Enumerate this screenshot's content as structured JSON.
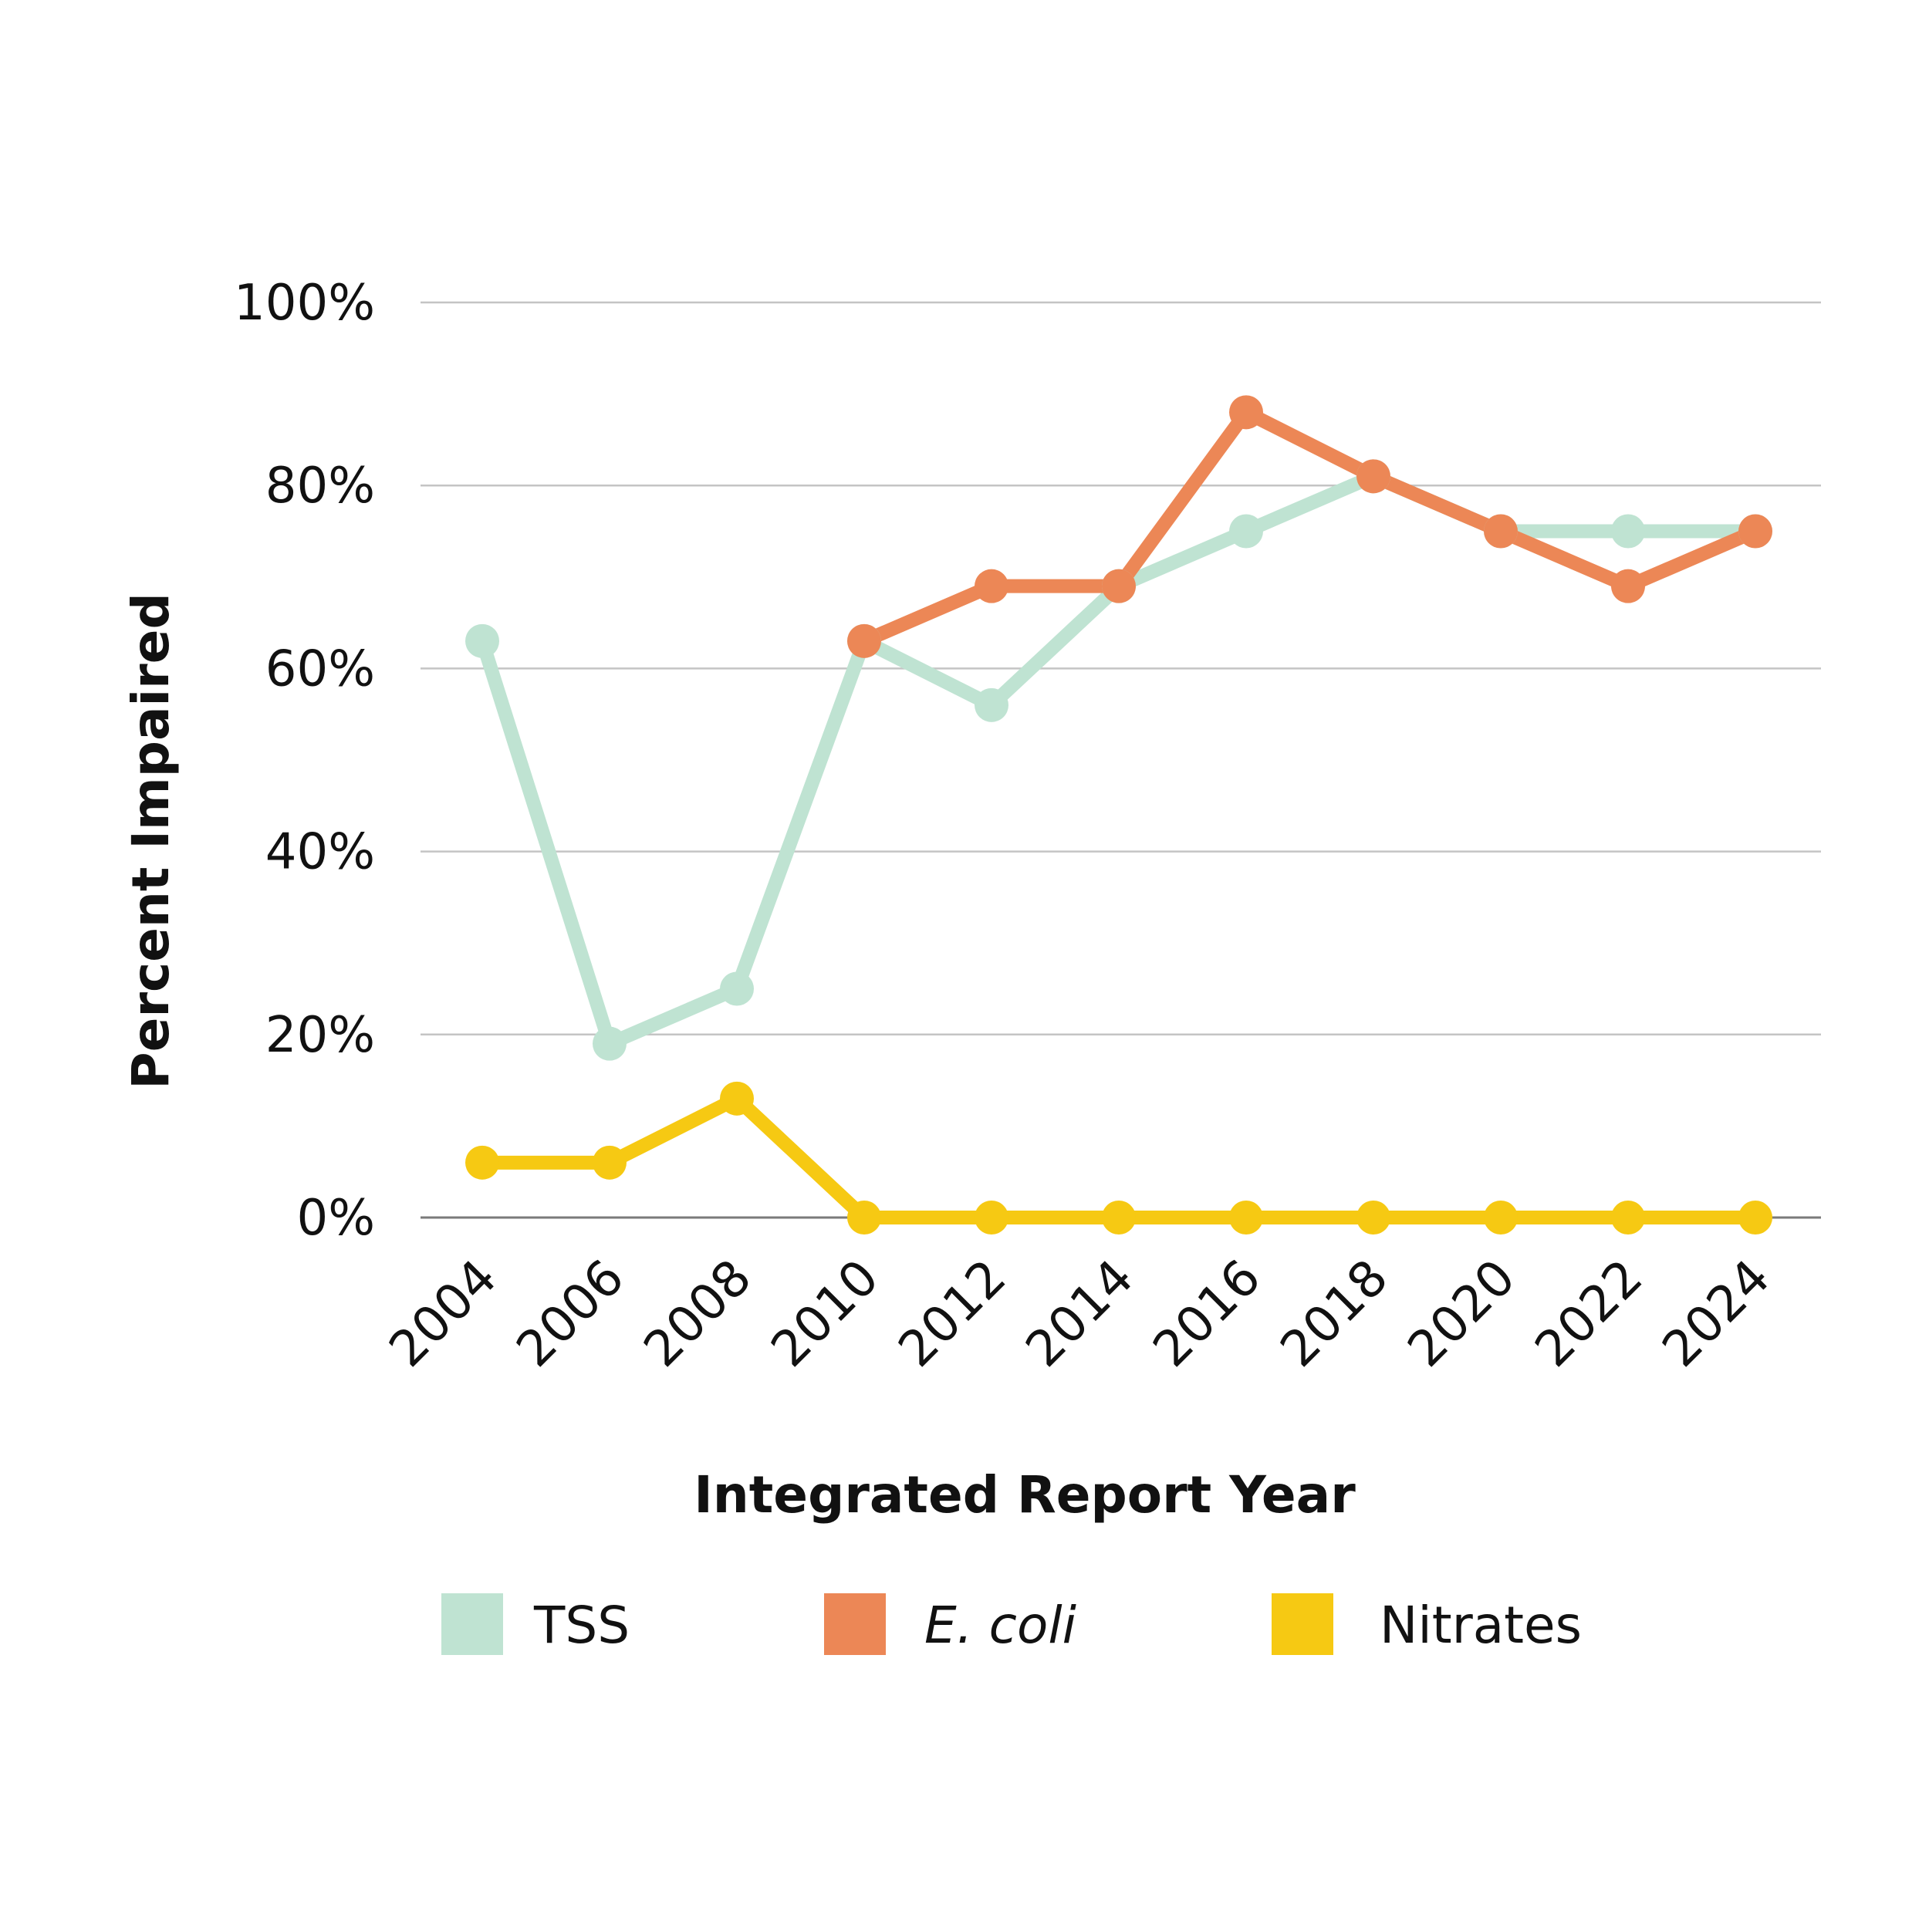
{
  "chart_data": {
    "type": "line",
    "title": "",
    "xlabel": "Integrated Report Year",
    "ylabel": "Percent Impaired",
    "categories": [
      "2004",
      "2006",
      "2008",
      "2010",
      "2012",
      "2014",
      "2016",
      "2018",
      "2020",
      "2022",
      "2024"
    ],
    "ylim": [
      0,
      100
    ],
    "yticks": [
      0,
      20,
      40,
      60,
      80,
      100
    ],
    "ytick_labels": [
      "0%",
      "20%",
      "40%",
      "60%",
      "80%",
      "100%"
    ],
    "grid": true,
    "legend_position": "bottom",
    "series": [
      {
        "name": "TSS",
        "color": "#bfe3d2",
        "italic": false,
        "values": [
          63,
          19,
          25,
          63,
          56,
          69,
          75,
          81,
          75,
          75,
          75
        ]
      },
      {
        "name": "E. coli",
        "color": "#ec8756",
        "italic": true,
        "values": [
          null,
          null,
          null,
          63,
          69,
          69,
          88,
          81,
          75,
          69,
          75
        ]
      },
      {
        "name": "Nitrates",
        "color": "#f6c913",
        "italic": false,
        "values": [
          6,
          6,
          13,
          0,
          0,
          0,
          0,
          0,
          0,
          0,
          0
        ]
      }
    ]
  }
}
